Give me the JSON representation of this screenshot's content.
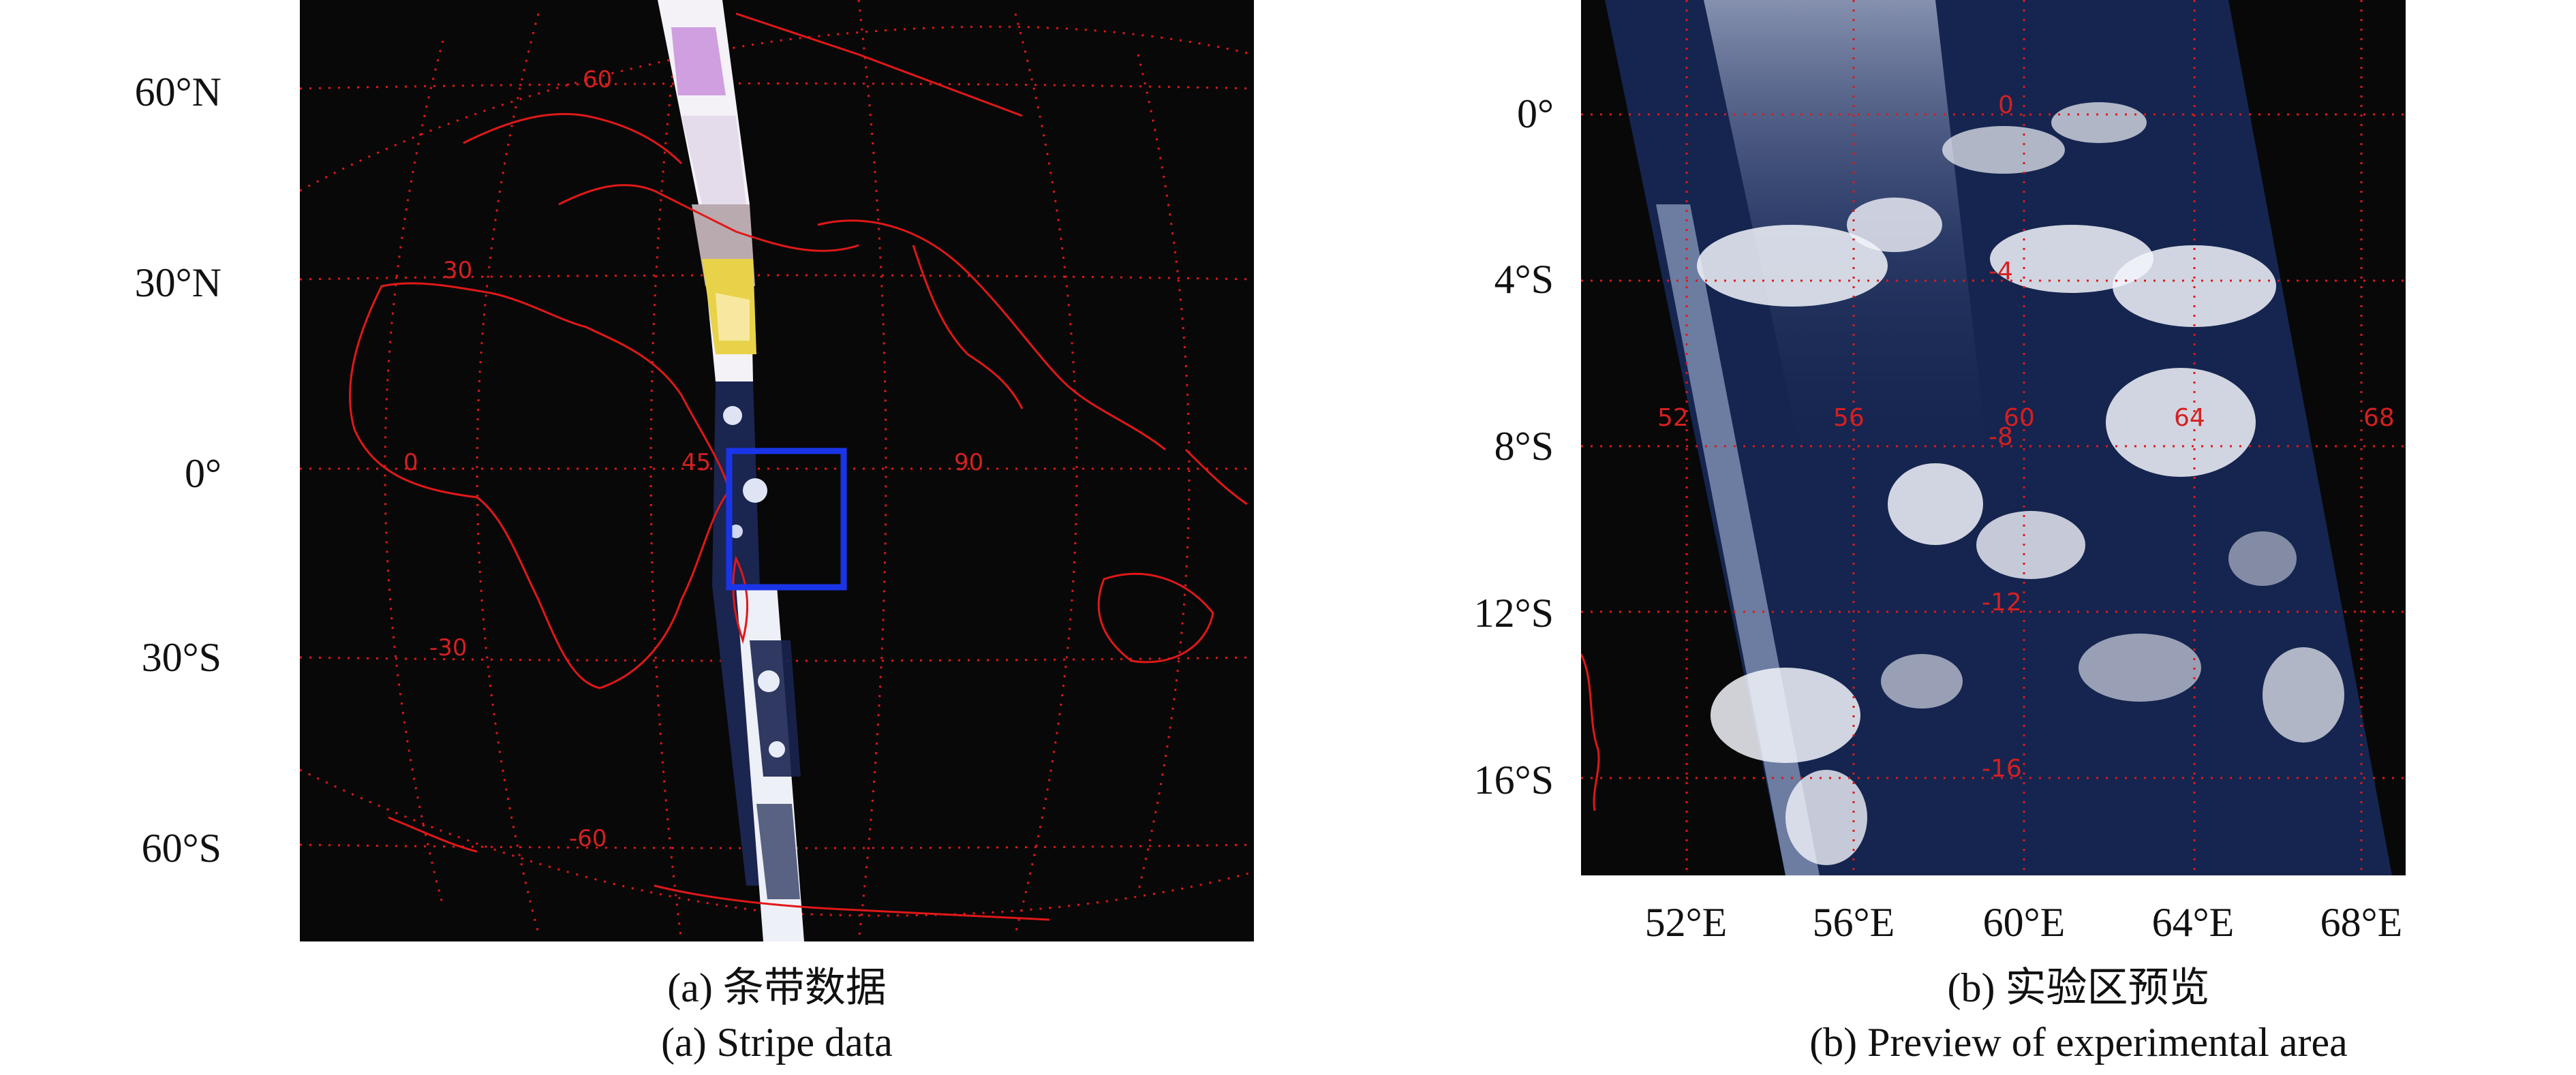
{
  "panel_a": {
    "lat_labels": [
      "60°N",
      "30°N",
      "0°",
      "30°S",
      "60°S"
    ],
    "grid_labels": {
      "lon": [
        "0",
        "45",
        "90"
      ],
      "lat": [
        "60",
        "30",
        "-30",
        "-60"
      ]
    },
    "caption_cn": "(a) 条带数据",
    "caption_en": "(a) Stripe data",
    "colors": {
      "background": "#080808",
      "coastline": "#e01818",
      "grid": "#e01818",
      "highlight_box": "#1a35e8"
    }
  },
  "panel_b": {
    "lat_labels": [
      "0°",
      "4°S",
      "8°S",
      "12°S",
      "16°S"
    ],
    "lon_labels": [
      "52°E",
      "56°E",
      "60°E",
      "64°E",
      "68°E"
    ],
    "grid_labels": {
      "lon": [
        "52",
        "56",
        "60",
        "64",
        "68"
      ],
      "lat": [
        "0",
        "-4",
        "-8",
        "-12",
        "-16"
      ]
    },
    "caption_cn": "(b) 实验区预览",
    "caption_en": "(b) Preview of experimental area",
    "colors": {
      "background": "#080808",
      "swath": "#15254f",
      "cloud": "#f2f4fa",
      "grid": "#e01818"
    }
  }
}
